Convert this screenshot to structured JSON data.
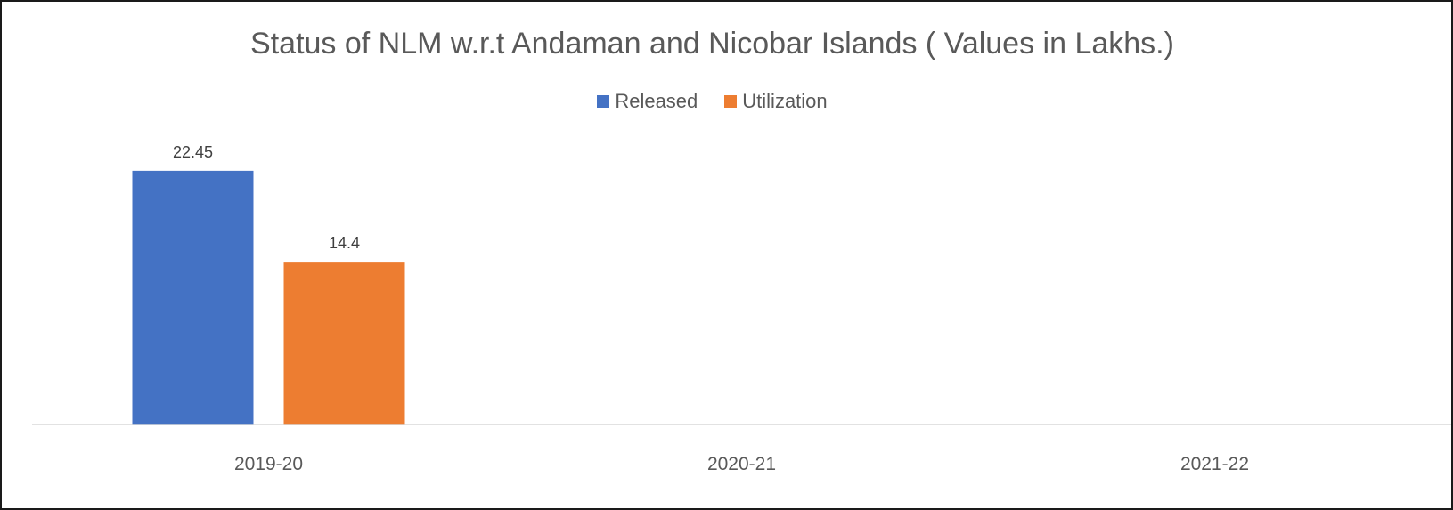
{
  "chart_data": {
    "type": "bar",
    "title": "Status of NLM w.r.t Andaman and Nicobar Islands ( Values in Lakhs.)",
    "categories": [
      "2019-20",
      "2020-21",
      "2021-22"
    ],
    "series": [
      {
        "name": "Released",
        "values": [
          22.45,
          null,
          null
        ],
        "labels": [
          "22.45",
          "",
          ""
        ]
      },
      {
        "name": "Utilization",
        "values": [
          14.4,
          null,
          null
        ],
        "labels": [
          "14.4",
          "",
          ""
        ]
      }
    ],
    "ylim": [
      0,
      30
    ],
    "grid": false,
    "legend_position": "top",
    "colors": [
      "#4472C4",
      "#ED7D31"
    ]
  }
}
